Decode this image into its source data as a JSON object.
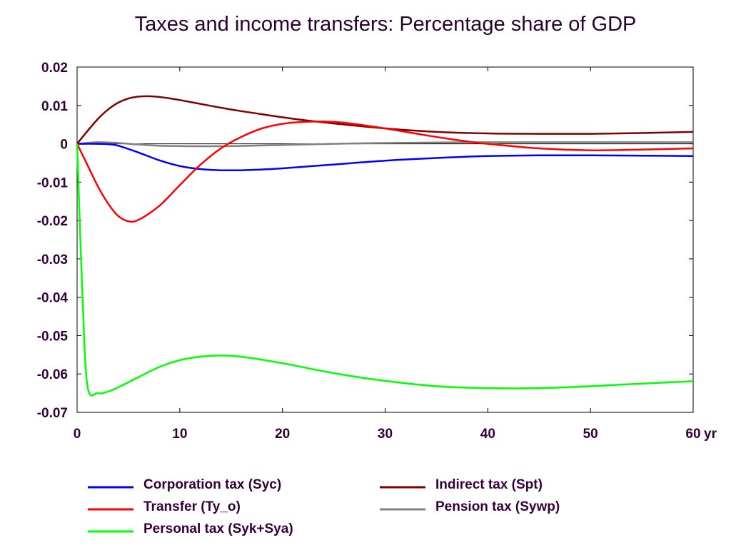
{
  "chart_data": {
    "type": "line",
    "title": "Taxes and income transfers: Percentage share of GDP",
    "xlabel": "",
    "ylabel": "",
    "x_unit_label": "yr",
    "xlim": [
      0,
      60
    ],
    "ylim": [
      -0.07,
      0.02
    ],
    "x_ticks": [
      "0",
      "10",
      "20",
      "30",
      "40",
      "50",
      "60"
    ],
    "y_ticks": [
      "0.02",
      "0.01",
      "0",
      "-0.01",
      "-0.02",
      "-0.03",
      "-0.04",
      "-0.05",
      "-0.06",
      "-0.07"
    ],
    "grid": false,
    "legend_position": "bottom",
    "series": [
      {
        "name": "Corporation tax (Syc)",
        "color": "#0000ff",
        "x": [
          0,
          2,
          3,
          4,
          6,
          8,
          10,
          12,
          14,
          16,
          18,
          20,
          25,
          30,
          35,
          40,
          45,
          50,
          55,
          60
        ],
        "y": [
          0,
          0,
          -0.0001,
          -0.0005,
          -0.0023,
          -0.0043,
          -0.0058,
          -0.0066,
          -0.0069,
          -0.0069,
          -0.0067,
          -0.0064,
          -0.0054,
          -0.0044,
          -0.0037,
          -0.0032,
          -0.003,
          -0.003,
          -0.0031,
          -0.0032
        ]
      },
      {
        "name": "Transfer (Ty_o)",
        "color": "#ff0000",
        "x": [
          0,
          1,
          2,
          3,
          4,
          5,
          6,
          8,
          10,
          12,
          14,
          16,
          18,
          20,
          22,
          24,
          26,
          30,
          34,
          38,
          40,
          45,
          50,
          55,
          60
        ],
        "y": [
          0,
          -0.0055,
          -0.011,
          -0.0155,
          -0.0188,
          -0.0202,
          -0.0198,
          -0.0162,
          -0.0108,
          -0.0055,
          -0.0012,
          0.0018,
          0.004,
          0.0052,
          0.0057,
          0.0058,
          0.0055,
          0.004,
          0.0022,
          0.0006,
          0.0,
          -0.0012,
          -0.0017,
          -0.0015,
          -0.0012
        ]
      },
      {
        "name": "Personal tax (Syk+Sya)",
        "color": "#00ff00",
        "x": [
          0,
          0.5,
          1,
          2,
          3,
          4,
          6,
          8,
          10,
          12,
          14,
          16,
          20,
          25,
          30,
          35,
          40,
          45,
          50,
          55,
          60
        ],
        "y": [
          0,
          -0.038,
          -0.063,
          -0.065,
          -0.0646,
          -0.0635,
          -0.0608,
          -0.0582,
          -0.0564,
          -0.0555,
          -0.0552,
          -0.0555,
          -0.0572,
          -0.0598,
          -0.0618,
          -0.0632,
          -0.0637,
          -0.0637,
          -0.0632,
          -0.0625,
          -0.0619
        ]
      },
      {
        "name": "Indirect tax (Spt)",
        "color": "#800000",
        "x": [
          0,
          1,
          2,
          3,
          4,
          5,
          6,
          7,
          8,
          10,
          12,
          14,
          16,
          18,
          20,
          22,
          25,
          30,
          35,
          40,
          45,
          50,
          55,
          60
        ],
        "y": [
          0,
          0.0033,
          0.0064,
          0.0089,
          0.0107,
          0.0118,
          0.0123,
          0.0124,
          0.0122,
          0.0114,
          0.0104,
          0.0094,
          0.0085,
          0.0077,
          0.0069,
          0.0062,
          0.0053,
          0.004,
          0.0031,
          0.0027,
          0.0026,
          0.0026,
          0.0028,
          0.0031
        ]
      },
      {
        "name": "Pension tax (Sywp)",
        "color": "#808080",
        "x": [
          0,
          2,
          4,
          6,
          8,
          10,
          15,
          20,
          25,
          30,
          40,
          50,
          60
        ],
        "y": [
          0,
          0.0004,
          0.0002,
          -0.0002,
          -0.0005,
          -0.0006,
          -0.0006,
          -0.0003,
          0.0,
          0.0002,
          0.0004,
          0.0004,
          0.0004
        ]
      }
    ]
  }
}
